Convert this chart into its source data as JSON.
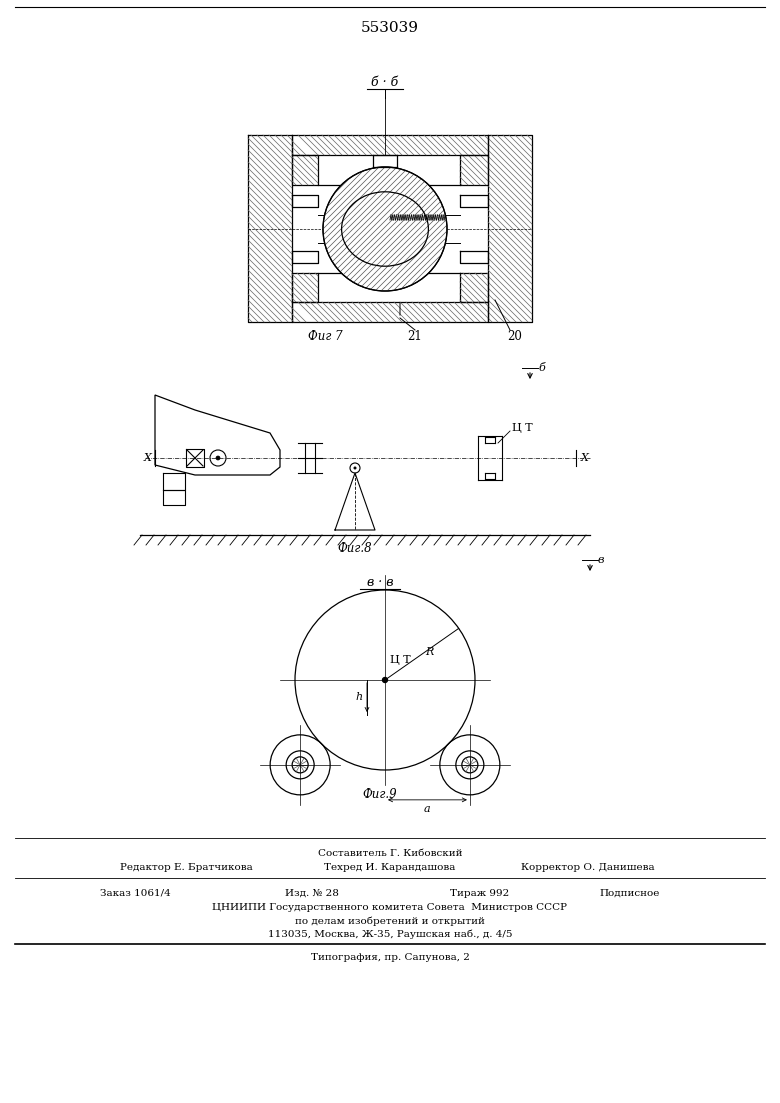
{
  "title": "553039",
  "bg_color": "#ffffff",
  "line_color": "#000000",
  "fig7_label": "Фиг 7",
  "fig8_label": "Фиг.8",
  "fig9_label": "Фиг.9",
  "label_21": "21",
  "label_20": "20",
  "label_b_b": "б · б",
  "label_b": "б",
  "label_v": "в",
  "label_v_v": "в · в",
  "label_ct": "Ц Т",
  "label_x": "Х",
  "label_r": "R",
  "label_h": "h",
  "label_a": "a",
  "footer_line1": "Составитель Г. Кибовский",
  "footer_line2_l": "Редактор Е. Братчикова",
  "footer_line2_c": "Техред И. Карандашова",
  "footer_line2_r": "Корректор О. Данишева",
  "footer_line3_l": "Заказ 1061/4",
  "footer_line3_lc": "Изд. № 28",
  "footer_line3_c": "Тираж 992",
  "footer_line3_r": "Подписное",
  "footer_line4": "ЦНИИПИ Государственного комитета Совета  Министров СССР",
  "footer_line5": "по делам изобретений и открытий",
  "footer_line6": "113035, Москва, Ж-35, Раушская наб., д. 4/5",
  "footer_line7": "Типография, пр. Сапунова, 2"
}
